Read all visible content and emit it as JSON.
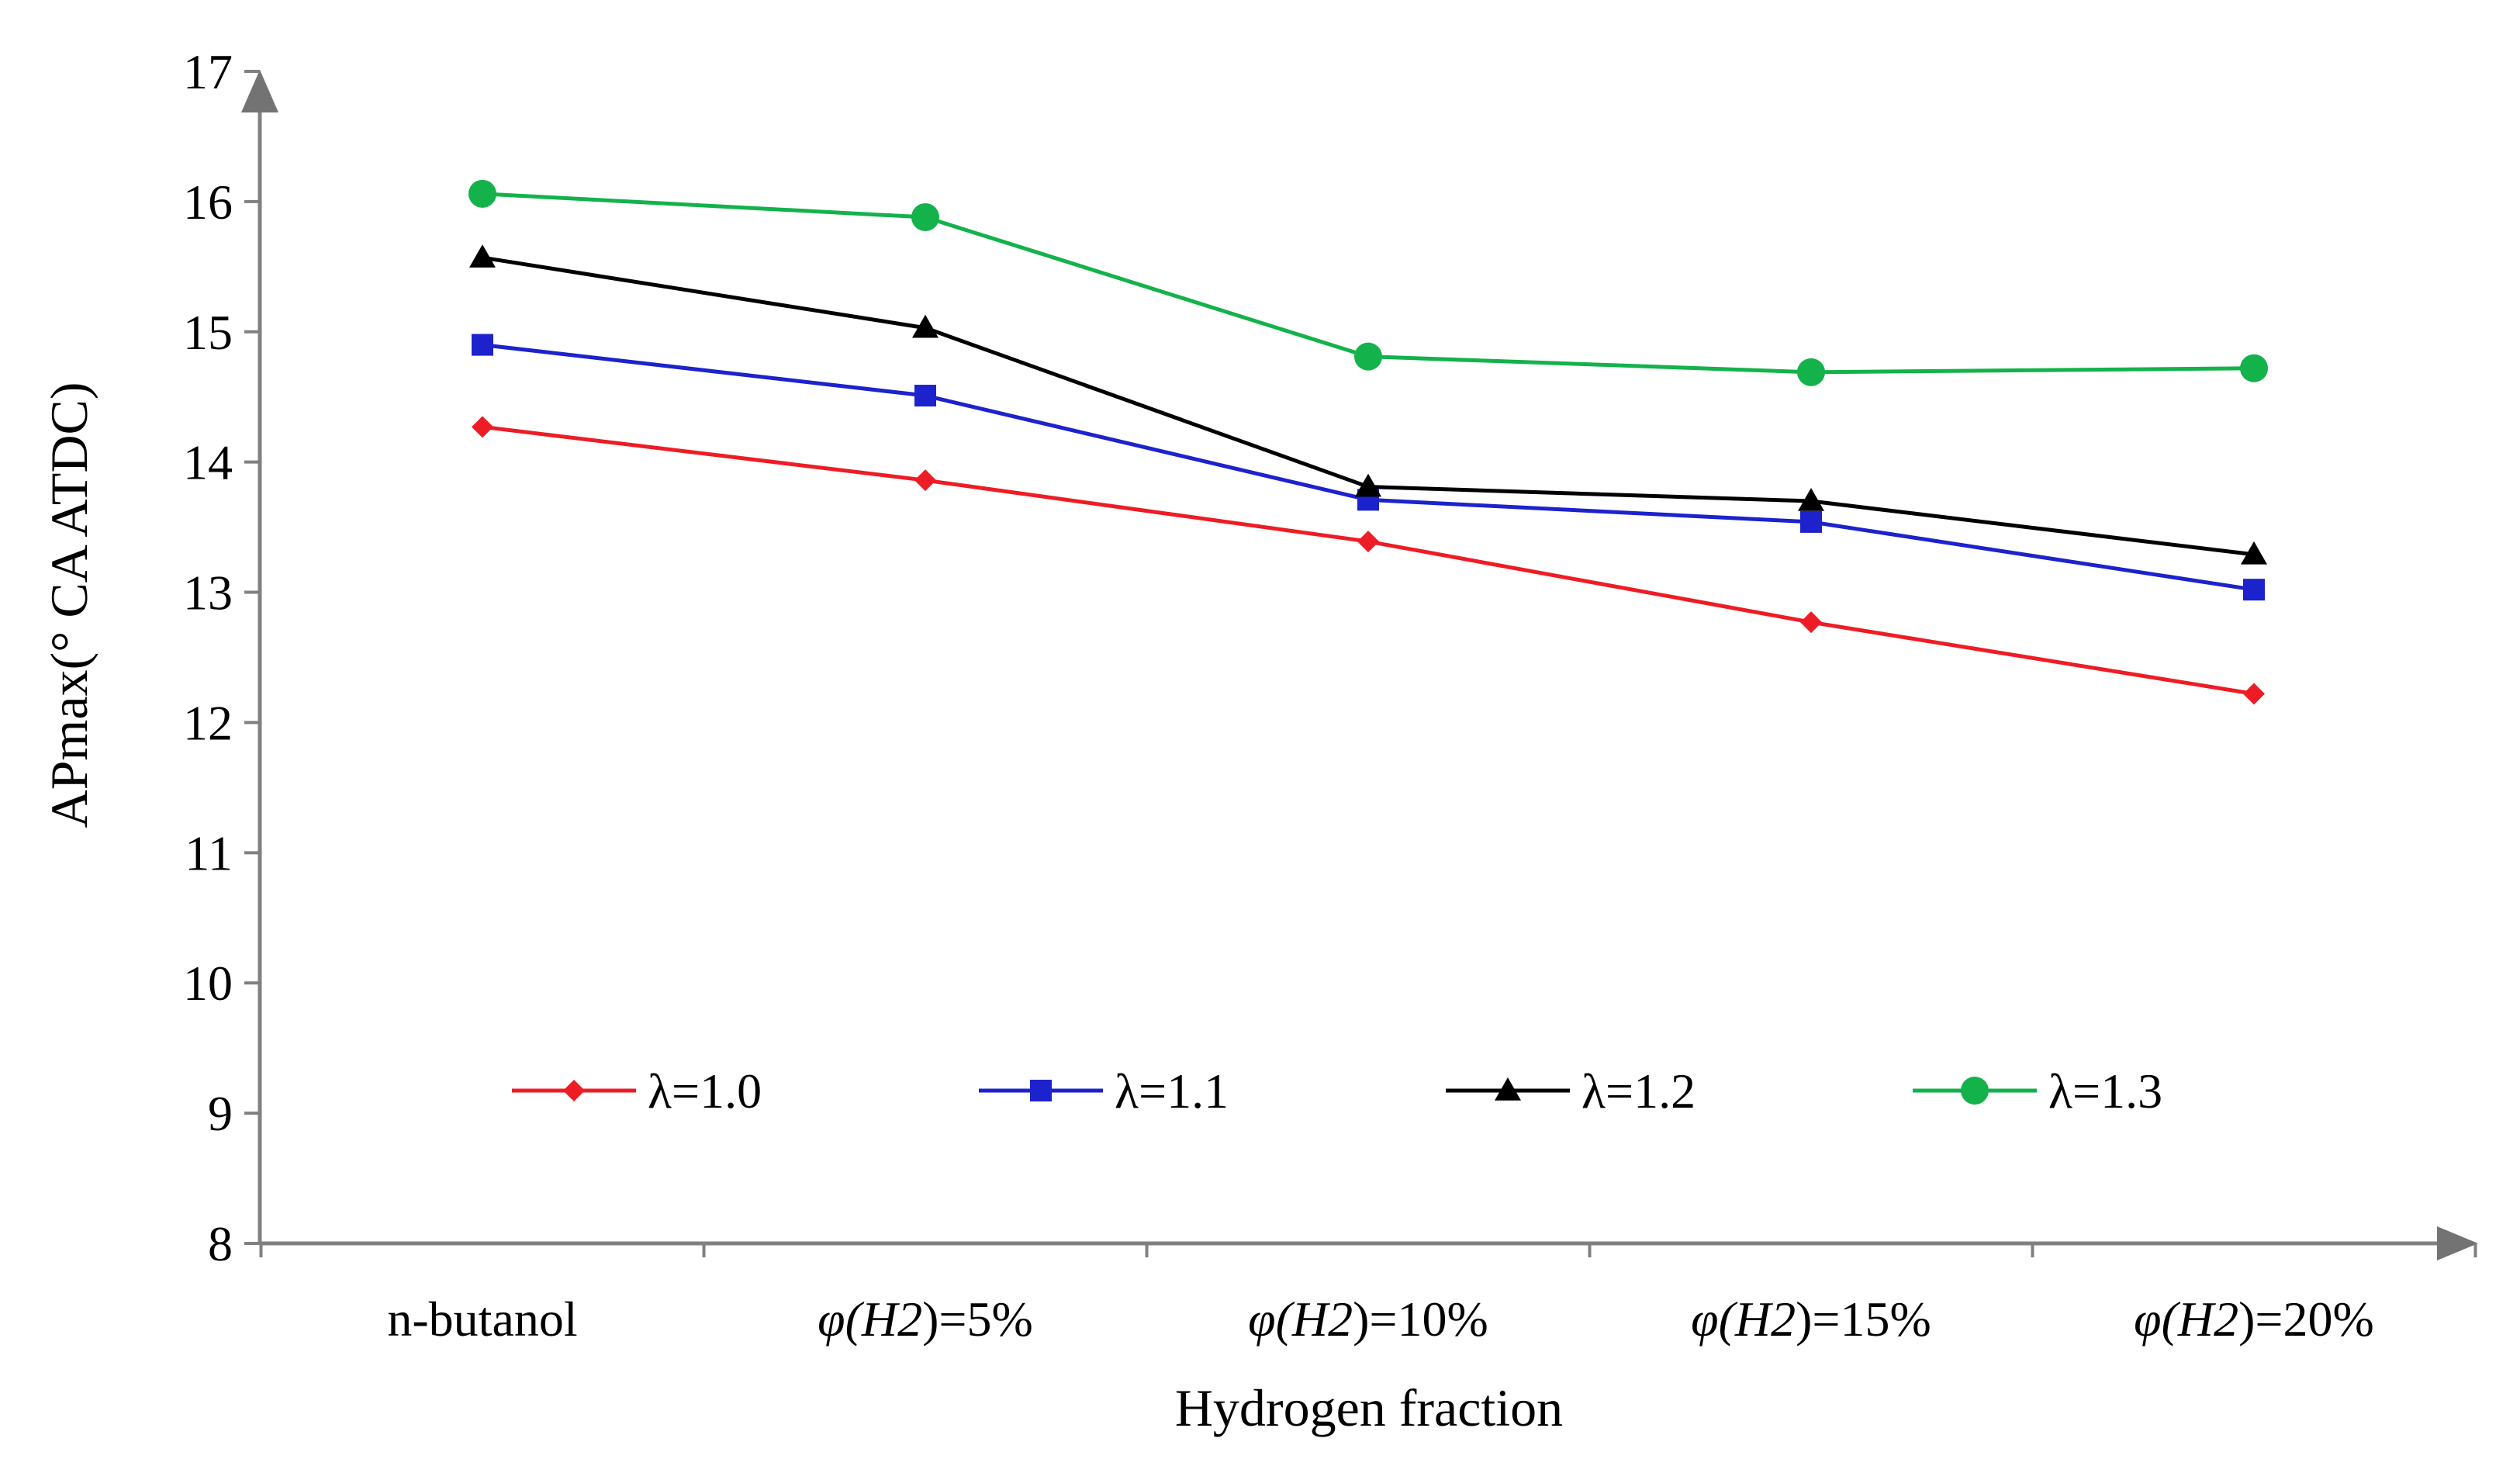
{
  "chart_data": {
    "type": "line",
    "title": "",
    "xlabel": "Hydrogen fraction",
    "ylabel": "APmax(° CA ATDC)",
    "ylim": [
      8,
      17
    ],
    "yticks": [
      "8",
      "9",
      "10",
      "11",
      "12",
      "13",
      "14",
      "15",
      "16",
      "17"
    ],
    "categories": [
      {
        "label": "n-butanol",
        "prefix": "",
        "italic": "",
        "suffix": "n-butanol"
      },
      {
        "label": "φ(H2)=5%",
        "prefix": "φ",
        "italic": "(H2)",
        "suffix": "=5%"
      },
      {
        "label": "φ(H2)=10%",
        "prefix": "φ",
        "italic": "(H2)",
        "suffix": "=10%"
      },
      {
        "label": "φ(H2)=15%",
        "prefix": "φ",
        "italic": "(H2)",
        "suffix": "=15%"
      },
      {
        "label": "φ(H2)=20%",
        "prefix": "φ",
        "italic": "(H2)",
        "suffix": "=20%"
      }
    ],
    "legend_position": "center-bottom",
    "grid": false,
    "series": [
      {
        "name": "λ=1.0",
        "color": "#ee1c25",
        "marker": "diamond",
        "values": [
          14.27,
          13.86,
          13.39,
          12.77,
          12.22
        ]
      },
      {
        "name": "λ=1.1",
        "color": "#1c22cc",
        "marker": "square",
        "values": [
          14.9,
          14.51,
          13.71,
          13.54,
          13.02
        ]
      },
      {
        "name": "λ=1.2",
        "color": "#000000",
        "marker": "triangle",
        "values": [
          15.57,
          15.03,
          13.81,
          13.7,
          13.29
        ]
      },
      {
        "name": "λ=1.3",
        "color": "#13b24a",
        "marker": "circle",
        "values": [
          16.06,
          15.88,
          14.81,
          14.69,
          14.72
        ]
      }
    ]
  }
}
